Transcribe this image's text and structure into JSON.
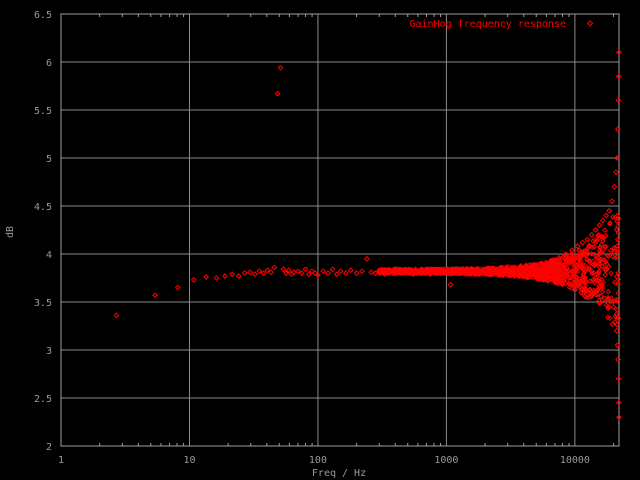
{
  "chart_data": {
    "type": "scatter",
    "xlabel": "Freq / Hz",
    "ylabel": "dB",
    "xscale": "log",
    "xlim": [
      1,
      22050
    ],
    "ylim": [
      2,
      6.5
    ],
    "grid": true,
    "legend_position": "top-right",
    "x_ticks": [
      "1",
      "10",
      "100",
      "1000",
      "10000"
    ],
    "x_tick_values": [
      1,
      10,
      100,
      1000,
      10000
    ],
    "y_ticks": [
      "2",
      "2.5",
      "3",
      "3.5",
      "4",
      "4.5",
      "5",
      "5.5",
      "6",
      "6.5"
    ],
    "y_tick_values": [
      2,
      2.5,
      3,
      3.5,
      4,
      4.5,
      5,
      5.5,
      6,
      6.5
    ],
    "series": [
      {
        "name": "GainHog frequency response",
        "color": "#ff0000",
        "marker": "diamond",
        "points": [
          [
            2.7,
            3.36
          ],
          [
            5.4,
            3.57
          ],
          [
            8.1,
            3.65
          ],
          [
            10.8,
            3.73
          ],
          [
            13.5,
            3.76
          ],
          [
            16.2,
            3.75
          ],
          [
            18.9,
            3.77
          ],
          [
            21.5,
            3.79
          ],
          [
            24.2,
            3.77
          ],
          [
            26.9,
            3.8
          ],
          [
            29.6,
            3.81
          ],
          [
            32.3,
            3.79
          ],
          [
            35,
            3.82
          ],
          [
            37.7,
            3.8
          ],
          [
            40.4,
            3.83
          ],
          [
            43.1,
            3.81
          ],
          [
            45.8,
            3.86
          ],
          [
            48.4,
            5.67
          ],
          [
            51.1,
            5.94
          ],
          [
            53.8,
            3.84
          ],
          [
            56.5,
            3.8
          ],
          [
            59.2,
            3.83
          ],
          [
            62,
            3.79
          ],
          [
            65,
            3.81
          ],
          [
            70,
            3.82
          ],
          [
            75,
            3.8
          ],
          [
            80,
            3.84
          ],
          [
            85,
            3.79
          ],
          [
            90,
            3.82
          ],
          [
            95,
            3.8
          ],
          [
            100,
            3.78
          ],
          [
            110,
            3.82
          ],
          [
            120,
            3.8
          ],
          [
            130,
            3.84
          ],
          [
            140,
            3.79
          ],
          [
            150,
            3.82
          ],
          [
            165,
            3.8
          ],
          [
            180,
            3.83
          ],
          [
            200,
            3.8
          ],
          [
            220,
            3.82
          ],
          [
            240,
            3.95
          ],
          [
            260,
            3.81
          ],
          [
            280,
            3.8
          ],
          [
            300,
            3.83
          ],
          [
            330,
            3.79
          ],
          [
            360,
            3.82
          ],
          [
            400,
            3.8
          ],
          [
            450,
            3.83
          ],
          [
            500,
            3.81
          ],
          [
            550,
            3.79
          ],
          [
            600,
            3.82
          ],
          [
            650,
            3.8
          ],
          [
            700,
            3.84
          ],
          [
            750,
            3.79
          ],
          [
            800,
            3.82
          ],
          [
            900,
            3.8
          ],
          [
            1000,
            3.83
          ],
          [
            1080,
            3.68
          ],
          [
            1200,
            3.81
          ],
          [
            1400,
            3.8
          ],
          [
            1600,
            3.84
          ],
          [
            1800,
            3.79
          ],
          [
            2000,
            3.82
          ],
          [
            2300,
            3.85
          ],
          [
            2600,
            3.78
          ],
          [
            3000,
            3.84
          ],
          [
            3400,
            3.77
          ],
          [
            3800,
            3.86
          ],
          [
            4200,
            3.76
          ],
          [
            4600,
            3.88
          ],
          [
            5000,
            3.75
          ],
          [
            5500,
            3.9
          ],
          [
            6000,
            3.74
          ],
          [
            6500,
            3.93
          ],
          [
            7000,
            3.72
          ],
          [
            7500,
            3.96
          ],
          [
            8000,
            3.7
          ],
          [
            8500,
            4.0
          ],
          [
            9000,
            3.69
          ],
          [
            9500,
            4.04
          ],
          [
            10000,
            3.68
          ],
          [
            10500,
            4.08
          ],
          [
            11000,
            3.66
          ],
          [
            11500,
            4.12
          ],
          [
            12000,
            3.64
          ],
          [
            12500,
            4.15
          ],
          [
            13000,
            3.62
          ],
          [
            13500,
            4.2
          ],
          [
            14000,
            3.6
          ],
          [
            14500,
            4.25
          ],
          [
            15000,
            3.58
          ],
          [
            15500,
            4.3
          ],
          [
            16000,
            3.56
          ],
          [
            16500,
            4.35
          ],
          [
            17000,
            3.54
          ],
          [
            17500,
            4.4
          ],
          [
            18000,
            3.52
          ],
          [
            18500,
            4.45
          ],
          [
            19000,
            3.5
          ],
          [
            19500,
            4.55
          ],
          [
            20000,
            3.45
          ],
          [
            20300,
            4.7
          ],
          [
            20600,
            3.35
          ],
          [
            20900,
            4.85
          ],
          [
            21100,
            3.2
          ],
          [
            21300,
            5.0
          ],
          [
            21450,
            3.05
          ],
          [
            21600,
            5.3
          ],
          [
            21700,
            2.9
          ],
          [
            21800,
            5.6
          ],
          [
            21850,
            2.7
          ],
          [
            21900,
            5.85
          ],
          [
            21950,
            2.45
          ],
          [
            22000,
            6.1
          ],
          [
            22020,
            2.3
          ]
        ]
      }
    ]
  }
}
